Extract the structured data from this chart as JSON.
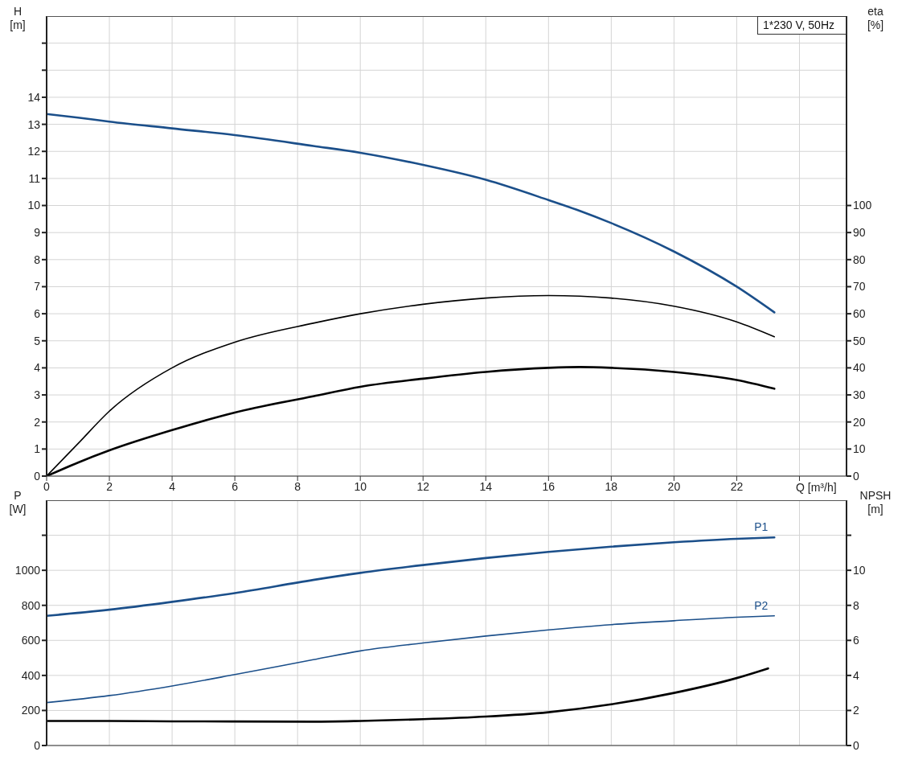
{
  "chart_data": [
    {
      "type": "line",
      "xlabel": "Q [m³/h]",
      "ylabel": "H [m]",
      "y2label": "eta [%]",
      "x": [
        0,
        1,
        2,
        4,
        6,
        8.5,
        10,
        12,
        14,
        16,
        17,
        18,
        20,
        22,
        23.2
      ],
      "series": [
        {
          "color": "#1b4f8a",
          "values": [
            13.38,
            13.25,
            13.1,
            12.85,
            12.6,
            12.2,
            11.95,
            11.5,
            10.95,
            10.2,
            9.8,
            9.35,
            8.3,
            7.0,
            6.05
          ]
        },
        {
          "color": "#000000",
          "axis": "y2",
          "values": [
            0,
            12,
            24,
            40,
            49.5,
            56.5,
            60,
            63.5,
            65.8,
            66.7,
            66.5,
            65.8,
            62.8,
            57,
            51.5
          ]
        },
        {
          "color": "#000000",
          "axis": "y2",
          "values": [
            0,
            5,
            9.5,
            17,
            23.5,
            29.5,
            33,
            36,
            38.5,
            40,
            40.3,
            40,
            38.5,
            35.5,
            32.3
          ]
        }
      ],
      "xlim": [
        0,
        25.5
      ],
      "xticks": [
        0,
        2,
        4,
        6,
        8,
        10,
        12,
        14,
        16,
        18,
        20,
        22,
        {
          "value": 24,
          "label": null
        }
      ],
      "ylim": [
        0,
        17
      ],
      "yticks": [
        0,
        1,
        2,
        3,
        4,
        5,
        6,
        7,
        8,
        9,
        10,
        11,
        12,
        13,
        14,
        {
          "value": 15,
          "label": null
        },
        {
          "value": 16,
          "label": null
        }
      ],
      "y2lim": [
        0,
        170
      ],
      "y2ticks": [
        0,
        10,
        20,
        30,
        40,
        50,
        60,
        70,
        80,
        90,
        100
      ],
      "annotations": [
        "1*230 V, 50Hz"
      ],
      "grid": true,
      "legend": false,
      "marker": "none"
    },
    {
      "type": "line",
      "ylabel": "P [W]",
      "y2label": "NPSH [m]",
      "x": [
        0,
        2,
        4,
        6,
        8.5,
        10,
        12,
        14,
        16,
        18,
        20,
        22,
        23,
        23.2
      ],
      "series": [
        {
          "name": "P1",
          "color": "#1b4f8a",
          "values": [
            740,
            775,
            820,
            870,
            945,
            985,
            1030,
            1070,
            1105,
            1135,
            1160,
            1180,
            null,
            1188
          ]
        },
        {
          "name": "P2",
          "color": "#1b4f8a",
          "values": [
            245,
            285,
            340,
            405,
            490,
            540,
            585,
            625,
            660,
            690,
            712,
            732,
            null,
            740
          ]
        },
        {
          "color": "#000000",
          "axis": "y2",
          "values": [
            1.4,
            1.4,
            1.38,
            1.37,
            1.36,
            1.4,
            1.5,
            1.65,
            1.9,
            2.35,
            3.0,
            3.85,
            4.4,
            null
          ]
        }
      ],
      "xlim": [
        0,
        25.5
      ],
      "xticks": [
        0,
        2,
        4,
        6,
        8,
        10,
        12,
        14,
        16,
        18,
        20,
        22,
        24
      ],
      "ylim": [
        0,
        1400
      ],
      "yticks": [
        0,
        200,
        400,
        600,
        800,
        1000,
        {
          "value": 1200,
          "label": null
        }
      ],
      "y2lim": [
        0,
        14
      ],
      "y2ticks": [
        0,
        2,
        4,
        6,
        8,
        10,
        {
          "value": 12,
          "label": null
        }
      ],
      "tick_labels": "y",
      "grid": true,
      "legend": false,
      "marker": "none"
    }
  ]
}
